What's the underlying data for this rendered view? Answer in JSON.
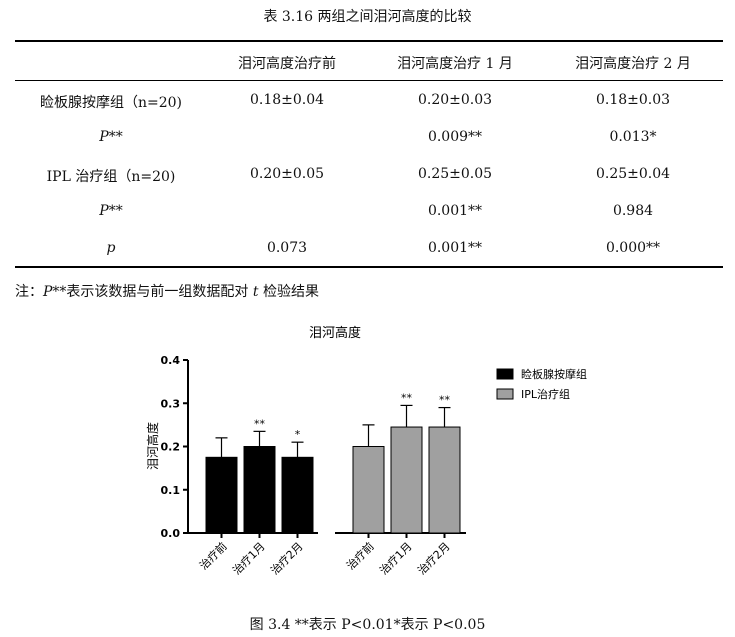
{
  "table": {
    "caption": "表 3.16  两组之间泪河高度的比较",
    "headers": [
      "",
      "泪河高度治疗前",
      "泪河高度治疗 1 月",
      "泪河高度治疗 2 月"
    ],
    "rows": [
      {
        "label": "睑板腺按摩组（n=20)",
        "cells": [
          "0.18±0.04",
          "0.20±0.03",
          "0.18±0.03"
        ],
        "italic": false
      },
      {
        "label": "P**",
        "cells": [
          "",
          "0.009**",
          "0.013*"
        ],
        "italic": true
      },
      {
        "label": "IPL 治疗组（n=20)",
        "cells": [
          "0.20±0.05",
          "0.25±0.05",
          "0.25±0.04"
        ],
        "italic": false
      },
      {
        "label": "P**",
        "cells": [
          "",
          "0.001**",
          "0.984"
        ],
        "italic": true
      },
      {
        "label": "p",
        "cells": [
          "0.073",
          "0.001**",
          "0.000**"
        ],
        "italic": true
      }
    ],
    "note_prefix": "注：",
    "note_italic_1": "P",
    "note_mid": "**表示该数据与前一组数据配对 ",
    "note_italic_2": "t",
    "note_suffix": " 检验结果"
  },
  "chart_data": {
    "type": "bar",
    "title": "泪河高度",
    "ylabel": "泪河高度",
    "ylim": [
      0,
      0.4
    ],
    "yticks": [
      "0.0",
      "0.1",
      "0.2",
      "0.3",
      "0.4"
    ],
    "categories": [
      "治疗前",
      "治疗1月",
      "治疗2月"
    ],
    "series": [
      {
        "name": "睑板腺按摩组",
        "color": "#000000",
        "values": [
          0.175,
          0.2,
          0.175
        ],
        "errors": [
          0.045,
          0.035,
          0.035
        ],
        "sig": [
          "",
          "**",
          "*"
        ]
      },
      {
        "name": "IPL治疗组",
        "color": "#a0a0a0",
        "values": [
          0.2,
          0.245,
          0.245
        ],
        "errors": [
          0.05,
          0.05,
          0.045
        ],
        "sig": [
          "",
          "**",
          "**"
        ]
      }
    ],
    "legend_position": "right"
  },
  "figure_caption": "图 3.4 **表示 P<0.01*表示 P<0.05"
}
